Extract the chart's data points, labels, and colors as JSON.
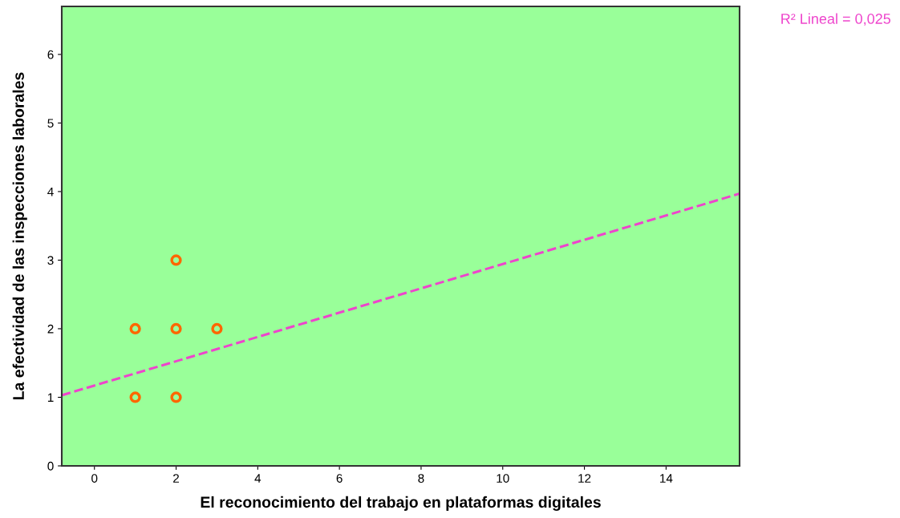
{
  "chart_data": {
    "type": "scatter",
    "xlabel": "El reconocimiento del trabajo en plataformas digitales",
    "ylabel": "La efectividad de las inspecciones laborales",
    "xlim": [
      -0.8,
      15.8
    ],
    "ylim": [
      0,
      6.7
    ],
    "xticks": [
      0,
      2,
      4,
      6,
      8,
      10,
      12,
      14
    ],
    "yticks": [
      0,
      1,
      2,
      3,
      4,
      5,
      6
    ],
    "grid": false,
    "legend": false,
    "annotations": [
      "R² Lineal = 0,025"
    ],
    "series": [
      {
        "color": "#ff6600",
        "marker": "circle",
        "x": [
          1,
          1,
          2,
          2,
          2,
          3
        ],
        "values": [
          1,
          2,
          1,
          2,
          3,
          2
        ]
      },
      {
        "type": "line",
        "color": "#ee44cc",
        "line_style": "dashed",
        "marker": "none",
        "x": [
          -0.8,
          15.8
        ],
        "values": [
          1.03,
          3.97
        ]
      }
    ]
  }
}
